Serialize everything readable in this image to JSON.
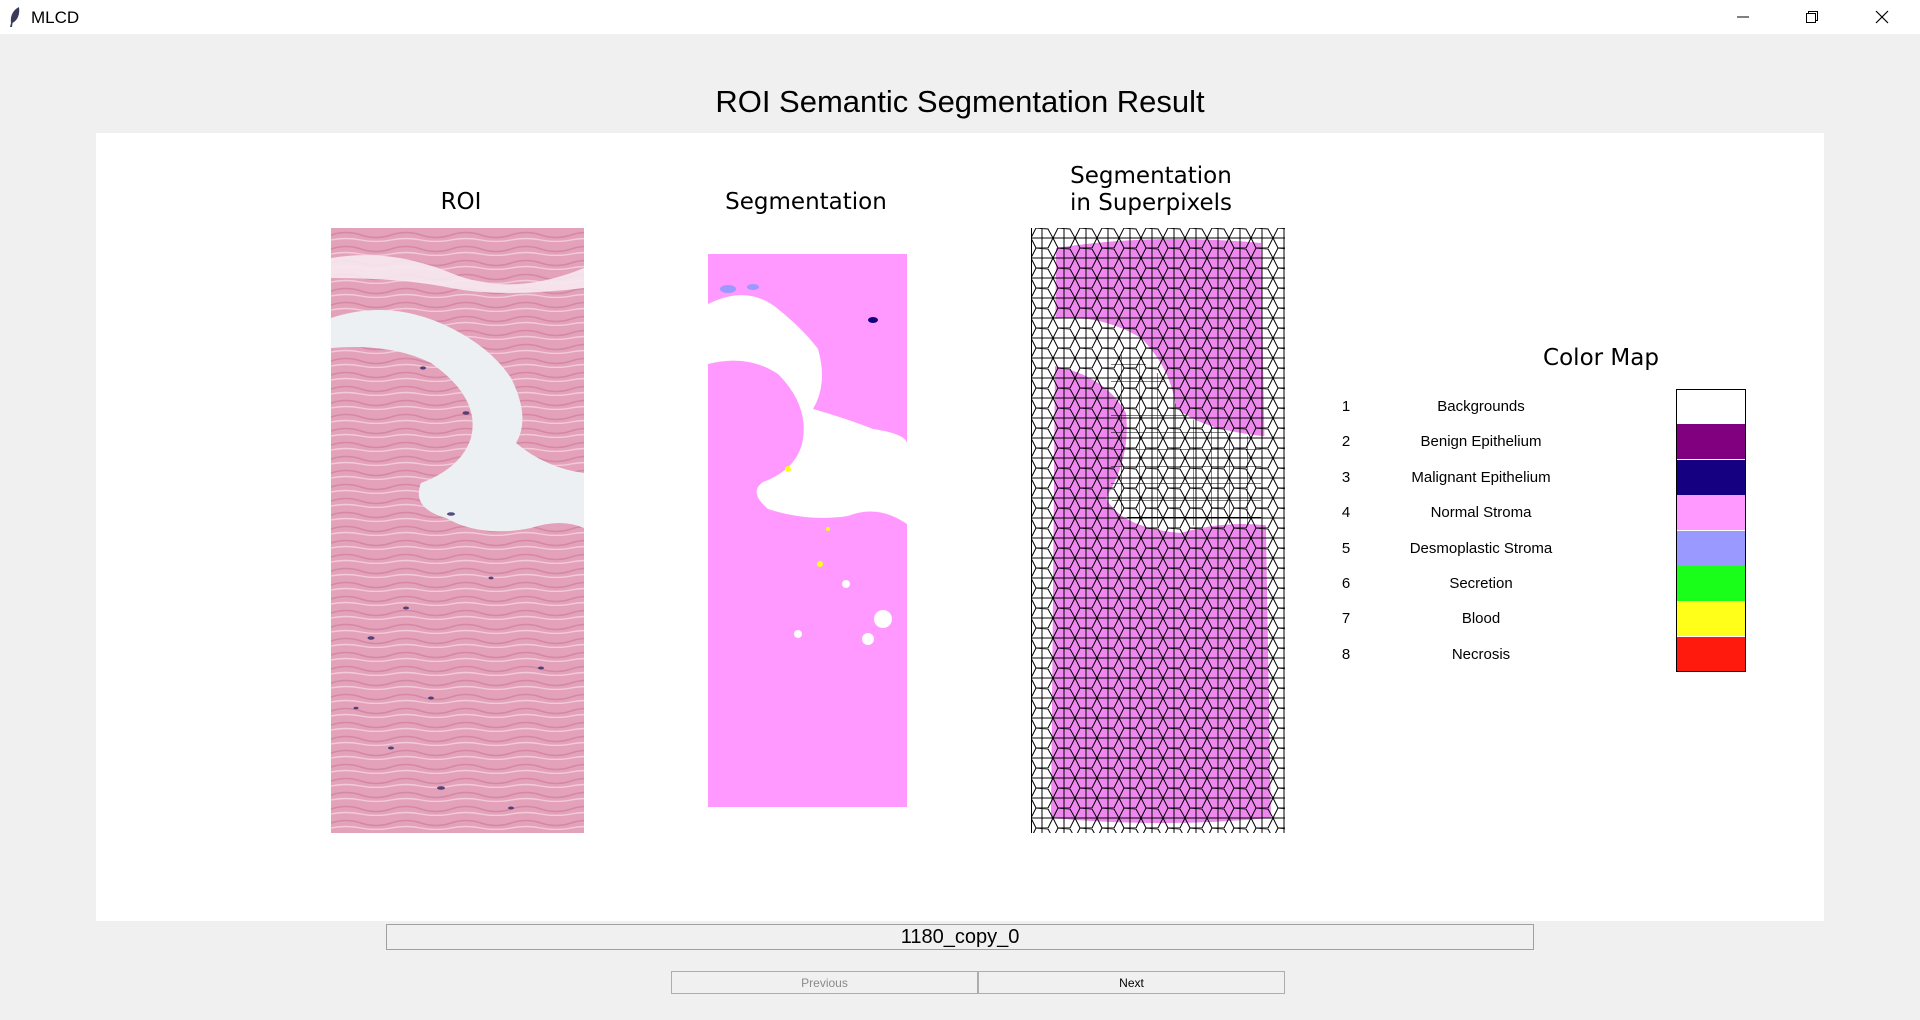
{
  "window": {
    "title": "MLCD",
    "controls": [
      "minimize-icon",
      "restore-icon",
      "close-icon"
    ]
  },
  "figure": {
    "title": "ROI Semantic Segmentation Result",
    "panels": {
      "roi_title": "ROI",
      "segmentation_title": "Segmentation",
      "superpixels_title_line1": "Segmentation",
      "superpixels_title_line2": "in Superpixels"
    },
    "color_map": {
      "title": "Color Map",
      "entries": [
        {
          "num": "1",
          "label": "Backgrounds",
          "color": "#ffffff"
        },
        {
          "num": "2",
          "label": "Benign Epithelium",
          "color": "#800080"
        },
        {
          "num": "3",
          "label": "Malignant Epithelium",
          "color": "#140080"
        },
        {
          "num": "4",
          "label": "Normal Stroma",
          "color": "#ff99ff"
        },
        {
          "num": "5",
          "label": "Desmoplastic Stroma",
          "color": "#9999ff"
        },
        {
          "num": "6",
          "label": "Secretion",
          "color": "#1aff1a"
        },
        {
          "num": "7",
          "label": "Blood",
          "color": "#ffff1a"
        },
        {
          "num": "8",
          "label": "Necrosis",
          "color": "#ff1a0d"
        }
      ]
    }
  },
  "footer": {
    "filename": "1180_copy_0",
    "previous_label": "Previous",
    "next_label": "Next"
  },
  "colors": {
    "window_bg": "#f0f0f0",
    "figure_bg": "#ffffff",
    "tissue_pink": "#e8a7bf",
    "stroma_pink": "#ff99ff",
    "superpixel_fill": "#ee88ee"
  }
}
